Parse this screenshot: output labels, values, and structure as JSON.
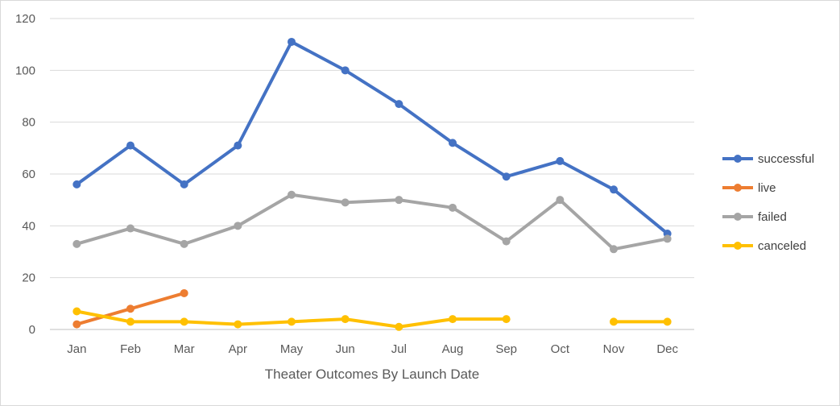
{
  "chart_data": {
    "type": "line",
    "title": "",
    "xlabel": "Theater Outcomes By Launch Date",
    "ylabel": "",
    "ylim": [
      0,
      120
    ],
    "yticks": [
      0,
      20,
      40,
      60,
      80,
      100,
      120
    ],
    "grid": true,
    "legend": "right",
    "categories": [
      "Jan",
      "Feb",
      "Mar",
      "Apr",
      "May",
      "Jun",
      "Jul",
      "Aug",
      "Sep",
      "Oct",
      "Nov",
      "Dec"
    ],
    "series": [
      {
        "name": "successful",
        "color": "#4472C4",
        "values": [
          56,
          71,
          56,
          71,
          111,
          100,
          87,
          72,
          59,
          65,
          54,
          37
        ]
      },
      {
        "name": "live",
        "color": "#ED7D31",
        "values": [
          2,
          8,
          14,
          null,
          null,
          null,
          null,
          null,
          null,
          null,
          null,
          null
        ]
      },
      {
        "name": "failed",
        "color": "#A5A5A5",
        "values": [
          33,
          39,
          33,
          40,
          52,
          49,
          50,
          47,
          34,
          50,
          31,
          35
        ]
      },
      {
        "name": "canceled",
        "color": "#FFC000",
        "values": [
          7,
          3,
          3,
          2,
          3,
          4,
          1,
          4,
          4,
          null,
          3,
          3
        ]
      }
    ]
  }
}
